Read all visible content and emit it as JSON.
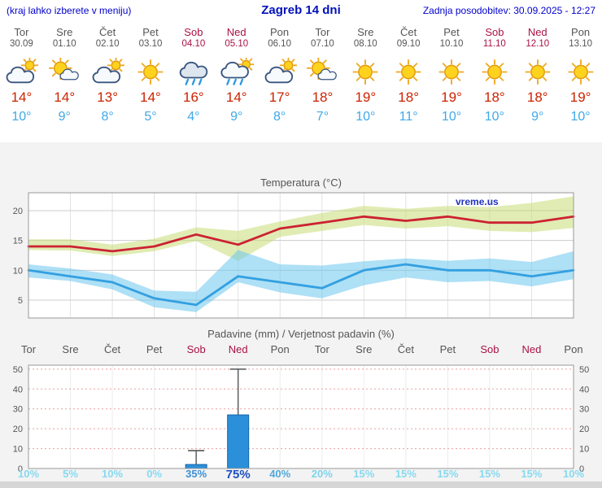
{
  "header": {
    "left": "(kraj lahko izberete v meniju)",
    "title": "Zagreb 14 dni",
    "right": "Zadnja posodobitev: 30.09.2025 - 12:27"
  },
  "days": [
    {
      "name": "Tor",
      "date": "30.09",
      "weekend": false,
      "icon": "cloud-sun",
      "tmax": "14°",
      "tmin": "10°",
      "prob": "10%",
      "prob_color": "#86d9ef",
      "prob_large": false
    },
    {
      "name": "Sre",
      "date": "01.10",
      "weekend": false,
      "icon": "sun-cloud",
      "tmax": "14°",
      "tmin": "9°",
      "prob": "5%",
      "prob_color": "#86d9ef",
      "prob_large": false
    },
    {
      "name": "Čet",
      "date": "02.10",
      "weekend": false,
      "icon": "cloud-sun",
      "tmax": "13°",
      "tmin": "8°",
      "prob": "10%",
      "prob_color": "#86d9ef",
      "prob_large": false
    },
    {
      "name": "Pet",
      "date": "03.10",
      "weekend": false,
      "icon": "sun",
      "tmax": "14°",
      "tmin": "5°",
      "prob": "0%",
      "prob_color": "#86d9ef",
      "prob_large": false
    },
    {
      "name": "Sob",
      "date": "04.10",
      "weekend": true,
      "icon": "rain",
      "tmax": "16°",
      "tmin": "4°",
      "prob": "35%",
      "prob_color": "#3d8fd4",
      "prob_large": false
    },
    {
      "name": "Ned",
      "date": "05.10",
      "weekend": true,
      "icon": "rain-sun",
      "tmax": "14°",
      "tmin": "9°",
      "prob": "75%",
      "prob_color": "#1b4fc0",
      "prob_large": true
    },
    {
      "name": "Pon",
      "date": "06.10",
      "weekend": false,
      "icon": "cloud-sun",
      "tmax": "17°",
      "tmin": "8°",
      "prob": "40%",
      "prob_color": "#4fa8dc",
      "prob_large": false
    },
    {
      "name": "Tor",
      "date": "07.10",
      "weekend": false,
      "icon": "sun-cloud",
      "tmax": "18°",
      "tmin": "7°",
      "prob": "20%",
      "prob_color": "#7fd2ec",
      "prob_large": false
    },
    {
      "name": "Sre",
      "date": "08.10",
      "weekend": false,
      "icon": "sun",
      "tmax": "19°",
      "tmin": "10°",
      "prob": "15%",
      "prob_color": "#86d9ef",
      "prob_large": false
    },
    {
      "name": "Čet",
      "date": "09.10",
      "weekend": false,
      "icon": "sun",
      "tmax": "18°",
      "tmin": "11°",
      "prob": "15%",
      "prob_color": "#86d9ef",
      "prob_large": false
    },
    {
      "name": "Pet",
      "date": "10.10",
      "weekend": false,
      "icon": "sun",
      "tmax": "19°",
      "tmin": "10°",
      "prob": "15%",
      "prob_color": "#86d9ef",
      "prob_large": false
    },
    {
      "name": "Sob",
      "date": "11.10",
      "weekend": true,
      "icon": "sun",
      "tmax": "18°",
      "tmin": "10°",
      "prob": "15%",
      "prob_color": "#86d9ef",
      "prob_large": false
    },
    {
      "name": "Ned",
      "date": "12.10",
      "weekend": true,
      "icon": "sun",
      "tmax": "18°",
      "tmin": "9°",
      "prob": "15%",
      "prob_color": "#86d9ef",
      "prob_large": false
    },
    {
      "name": "Pon",
      "date": "13.10",
      "weekend": false,
      "icon": "sun",
      "tmax": "19°",
      "tmin": "10°",
      "prob": "10%",
      "prob_color": "#86d9ef",
      "prob_large": false
    }
  ],
  "chart_data": [
    {
      "type": "line",
      "title": "Temperatura (°C)",
      "watermark": "vreme.us",
      "watermark_color": "#2233bb",
      "x_labels": [
        "Tor",
        "Sre",
        "Čet",
        "Pet",
        "Sob",
        "Ned",
        "Pon",
        "Tor",
        "Sre",
        "Čet",
        "Pet",
        "Sob",
        "Ned",
        "Pon"
      ],
      "ylim": [
        2,
        23
      ],
      "yticks": [
        5,
        10,
        15,
        20
      ],
      "grid": true,
      "series": [
        {
          "name": "max temperature",
          "color": "#cc2233",
          "values": [
            14,
            14,
            13.2,
            14,
            16,
            14.3,
            17,
            18,
            19,
            18.3,
            19,
            18,
            18,
            19
          ]
        },
        {
          "name": "min temperature",
          "color": "#33a0e0",
          "values": [
            10,
            9,
            8,
            5.3,
            4.2,
            9,
            8,
            7,
            10,
            11,
            10,
            10,
            9,
            10
          ]
        }
      ],
      "bands": [
        {
          "name": "max temperature range",
          "color": "#c6dd74",
          "upper": [
            15.2,
            15.2,
            14.3,
            15.3,
            17.2,
            16.6,
            18.2,
            19.6,
            20.8,
            20.3,
            20.8,
            20.6,
            21.3,
            22.4
          ],
          "lower": [
            13.4,
            13.3,
            12.4,
            13.2,
            14.9,
            11.6,
            15.6,
            16.6,
            17.6,
            17.0,
            17.4,
            16.6,
            16.4,
            17.1
          ]
        },
        {
          "name": "min temperature range",
          "color": "#6cc6ee",
          "upper": [
            11.0,
            10.3,
            9.3,
            6.6,
            6.4,
            13.4,
            11.0,
            10.8,
            11.5,
            12.0,
            11.6,
            12.0,
            11.4,
            13.2
          ],
          "lower": [
            8.8,
            8.2,
            6.8,
            3.8,
            3.0,
            8.0,
            6.3,
            5.3,
            7.5,
            8.8,
            8.0,
            8.2,
            7.3,
            8.5
          ]
        }
      ]
    },
    {
      "type": "bar",
      "title": "Padavine (mm) / Verjetnost padavin (%)",
      "categories": [
        "Tor",
        "Sre",
        "Čet",
        "Pet",
        "Sob",
        "Ned",
        "Pon",
        "Tor",
        "Sre",
        "Čet",
        "Pet",
        "Sob",
        "Ned",
        "Pon"
      ],
      "values_mm": [
        0,
        0,
        0,
        0,
        2,
        27,
        0,
        0,
        0,
        0,
        0,
        0,
        0,
        0
      ],
      "whisker_mm": [
        0,
        0,
        0,
        0,
        9,
        50,
        0,
        0,
        0,
        0,
        0,
        0,
        0,
        0
      ],
      "probabilities": [
        "10%",
        "5%",
        "10%",
        "0%",
        "35%",
        "75%",
        "40%",
        "20%",
        "15%",
        "15%",
        "15%",
        "15%",
        "15%",
        "10%"
      ],
      "ylim": [
        0,
        52
      ],
      "yticks": [
        0,
        10,
        20,
        30,
        40,
        50
      ],
      "bar_color": "#2b8fd9",
      "bar_border": "#1565a8"
    }
  ]
}
